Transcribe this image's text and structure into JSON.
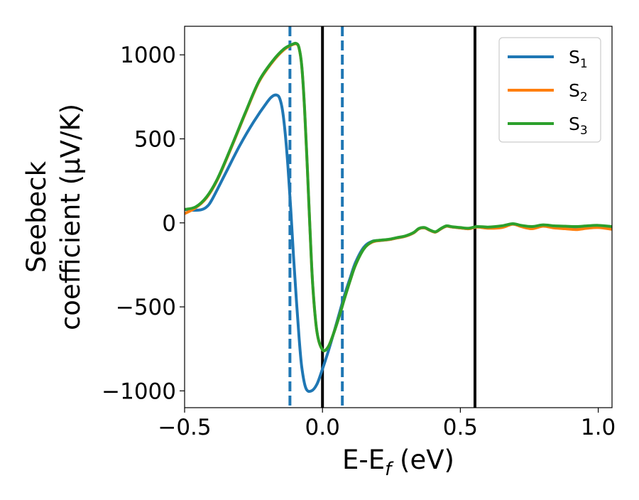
{
  "chart_data": {
    "type": "line",
    "title": "",
    "xlabel": "E-E_f (eV)",
    "ylabel_line1": "Seebeck",
    "ylabel_line2": "coefficient  (μV/K)",
    "xlim": [
      -0.5,
      1.05
    ],
    "ylim": [
      -1100,
      1170
    ],
    "xticks": [
      -0.5,
      0.0,
      0.5,
      1.0
    ],
    "xtick_labels": [
      "−0.5",
      "0.0",
      "0.5",
      "1.0"
    ],
    "yticks": [
      -1000,
      -500,
      0,
      500,
      1000
    ],
    "ytick_labels": [
      "−1000",
      "−500",
      "0",
      "500",
      "1000"
    ],
    "grid": false,
    "legend_position": "top-right",
    "vertical_lines": [
      {
        "x": -0.118,
        "style": "dashed",
        "color": "#1f77b4"
      },
      {
        "x": 0.072,
        "style": "dashed",
        "color": "#1f77b4"
      },
      {
        "x": 0.0,
        "style": "solid",
        "color": "#000000"
      },
      {
        "x": 0.553,
        "style": "solid",
        "color": "#000000"
      }
    ],
    "series": [
      {
        "name": "S1",
        "label_base": "S",
        "label_sub": "1",
        "color": "#1f77b4",
        "x": [
          -0.5,
          -0.47,
          -0.44,
          -0.42,
          -0.4,
          -0.35,
          -0.3,
          -0.25,
          -0.2,
          -0.18,
          -0.165,
          -0.155,
          -0.145,
          -0.135,
          -0.125,
          -0.115,
          -0.105,
          -0.095,
          -0.085,
          -0.075,
          -0.06,
          -0.04,
          -0.02,
          0.0,
          0.02,
          0.04,
          0.06,
          0.08,
          0.1,
          0.12,
          0.15,
          0.18,
          0.21,
          0.24,
          0.27,
          0.3,
          0.33,
          0.35,
          0.37,
          0.39,
          0.41,
          0.43,
          0.45,
          0.47,
          0.5,
          0.53,
          0.56,
          0.6,
          0.65,
          0.69,
          0.72,
          0.76,
          0.8,
          0.84,
          0.88,
          0.92,
          0.96,
          1.0,
          1.05
        ],
        "y": [
          80,
          75,
          78,
          95,
          140,
          300,
          460,
          600,
          720,
          755,
          760,
          740,
          670,
          530,
          330,
          80,
          -200,
          -450,
          -680,
          -860,
          -985,
          -1000,
          -960,
          -870,
          -770,
          -660,
          -545,
          -430,
          -330,
          -235,
          -145,
          -110,
          -105,
          -100,
          -90,
          -80,
          -60,
          -35,
          -30,
          -45,
          -55,
          -35,
          -20,
          -25,
          -30,
          -35,
          -25,
          -30,
          -20,
          -8,
          -20,
          -28,
          -18,
          -22,
          -25,
          -28,
          -22,
          -18,
          -25
        ]
      },
      {
        "name": "S2",
        "label_base": "S",
        "label_sub": "2",
        "color": "#ff7f0e",
        "x": [
          -0.5,
          -0.46,
          -0.42,
          -0.38,
          -0.33,
          -0.28,
          -0.23,
          -0.18,
          -0.14,
          -0.11,
          -0.095,
          -0.085,
          -0.075,
          -0.065,
          -0.055,
          -0.045,
          -0.035,
          -0.02,
          0.0,
          0.02,
          0.04,
          0.06,
          0.08,
          0.1,
          0.12,
          0.15,
          0.18,
          0.21,
          0.24,
          0.27,
          0.3,
          0.33,
          0.35,
          0.37,
          0.39,
          0.41,
          0.43,
          0.45,
          0.47,
          0.5,
          0.53,
          0.56,
          0.6,
          0.65,
          0.69,
          0.72,
          0.76,
          0.8,
          0.84,
          0.88,
          0.92,
          0.96,
          1.0,
          1.05
        ],
        "y": [
          55,
          90,
          150,
          260,
          450,
          650,
          840,
          960,
          1030,
          1060,
          1065,
          1040,
          930,
          680,
          330,
          -50,
          -380,
          -650,
          -755,
          -740,
          -660,
          -560,
          -450,
          -345,
          -250,
          -155,
          -115,
          -105,
          -100,
          -90,
          -80,
          -60,
          -35,
          -30,
          -45,
          -55,
          -35,
          -20,
          -25,
          -30,
          -35,
          -25,
          -32,
          -28,
          -8,
          -22,
          -35,
          -20,
          -30,
          -35,
          -40,
          -32,
          -28,
          -38
        ]
      },
      {
        "name": "S3",
        "label_base": "S",
        "label_sub": "3",
        "color": "#2ca02c",
        "x": [
          -0.5,
          -0.46,
          -0.42,
          -0.38,
          -0.33,
          -0.28,
          -0.23,
          -0.18,
          -0.14,
          -0.11,
          -0.095,
          -0.085,
          -0.075,
          -0.065,
          -0.055,
          -0.045,
          -0.035,
          -0.02,
          0.0,
          0.02,
          0.04,
          0.06,
          0.08,
          0.1,
          0.12,
          0.15,
          0.18,
          0.21,
          0.24,
          0.27,
          0.3,
          0.33,
          0.35,
          0.37,
          0.39,
          0.41,
          0.43,
          0.45,
          0.47,
          0.5,
          0.53,
          0.56,
          0.6,
          0.65,
          0.69,
          0.72,
          0.76,
          0.8,
          0.84,
          0.88,
          0.92,
          0.96,
          1.0,
          1.05
        ],
        "y": [
          80,
          95,
          155,
          265,
          455,
          655,
          845,
          965,
          1035,
          1062,
          1068,
          1042,
          932,
          682,
          332,
          -48,
          -378,
          -648,
          -755,
          -740,
          -660,
          -560,
          -450,
          -345,
          -250,
          -155,
          -112,
          -103,
          -98,
          -88,
          -78,
          -58,
          -33,
          -28,
          -43,
          -53,
          -33,
          -18,
          -23,
          -28,
          -32,
          -22,
          -25,
          -18,
          -5,
          -15,
          -22,
          -12,
          -18,
          -20,
          -22,
          -18,
          -15,
          -22
        ]
      }
    ]
  }
}
